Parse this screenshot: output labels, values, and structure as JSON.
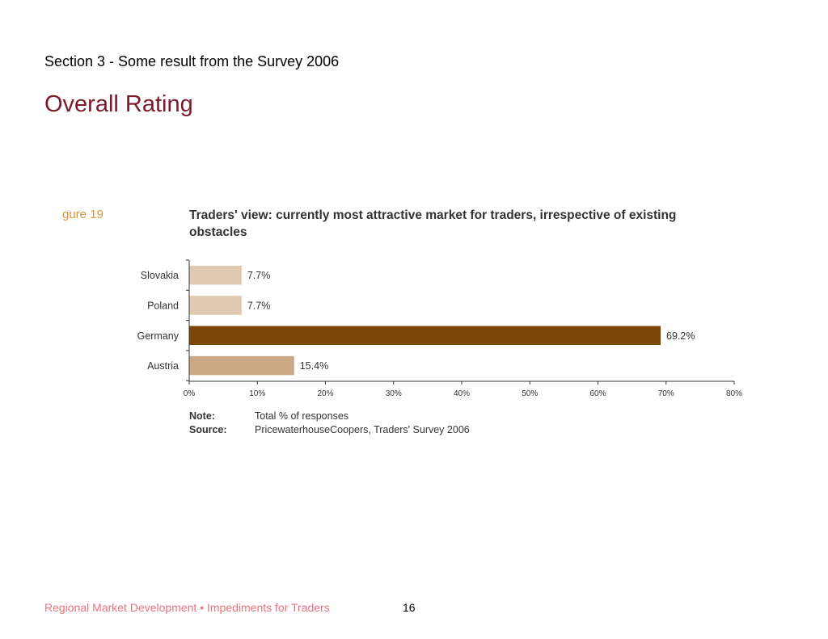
{
  "slide": {
    "section_title": "Section 3 - Some result from the Survey 2006",
    "title": "Overall Rating"
  },
  "figure": {
    "label": "gure 19"
  },
  "chart_data": {
    "type": "bar",
    "orientation": "horizontal",
    "title": "Traders' view: currently most attractive market for traders, irrespective of existing obstacles",
    "categories": [
      "Slovakia",
      "Poland",
      "Germany",
      "Austria"
    ],
    "values": [
      7.7,
      7.7,
      69.2,
      15.4
    ],
    "value_labels": [
      "7.7%",
      "7.7%",
      "69.2%",
      "15.4%"
    ],
    "bar_colors": [
      "#dfcab1",
      "#dfcab1",
      "#7a4706",
      "#cba985"
    ],
    "xlim": [
      0,
      80
    ],
    "xticks": [
      0,
      10,
      20,
      30,
      40,
      50,
      60,
      70,
      80
    ],
    "xtick_labels": [
      "0%",
      "10%",
      "20%",
      "30%",
      "40%",
      "50%",
      "60%",
      "70%",
      "80%"
    ],
    "xlabel": "",
    "ylabel": "",
    "grid": false
  },
  "notes": {
    "note_key": "Note:",
    "note_value": "Total % of responses",
    "source_key": "Source:",
    "source_value": "PricewaterhouseCoopers, Traders' Survey 2006"
  },
  "footer": {
    "text": "Regional Market Development • Impediments for Traders",
    "page_number": "16"
  }
}
